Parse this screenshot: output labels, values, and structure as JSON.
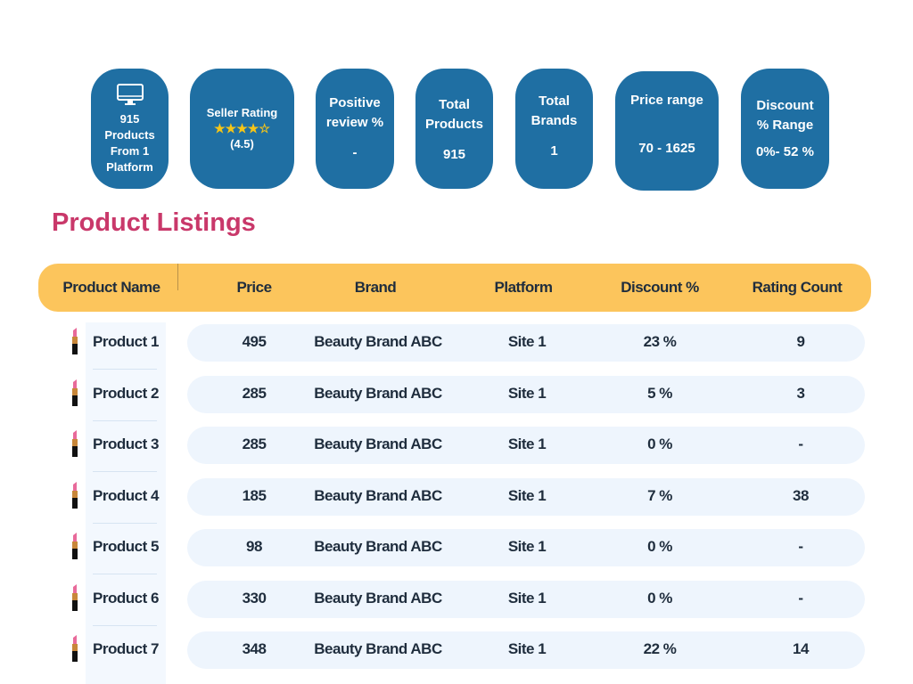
{
  "cards": [
    {
      "icon": "monitor-icon",
      "lines": [
        "915",
        "Products",
        "From 1",
        "Platform"
      ]
    },
    {
      "title": "Seller Rating",
      "rating": 4.5,
      "stars": "★★★★☆",
      "value": "(4.5)"
    },
    {
      "title": "Positive review %",
      "value": "-"
    },
    {
      "title": "Total Products",
      "value": "915"
    },
    {
      "title": "Total Brands",
      "value": "1"
    },
    {
      "title": "Price range",
      "value": "70 - 1625"
    },
    {
      "title": "Discount % Range",
      "value": "0%- 52 %"
    }
  ],
  "section_title": "Product Listings",
  "columns": [
    "Product Name",
    "Price",
    "Brand",
    "Platform",
    "Discount %",
    "Rating  Count"
  ],
  "rows": [
    [
      "Product 1",
      "495",
      "Beauty Brand ABC",
      "Site 1",
      "23 %",
      "9"
    ],
    [
      "Product  2",
      "285",
      "Beauty Brand ABC",
      "Site 1",
      "5 %",
      "3"
    ],
    [
      "Product 3",
      "285",
      "Beauty Brand ABC",
      "Site 1",
      "0 %",
      "-"
    ],
    [
      "Product 4",
      "185",
      "Beauty Brand ABC",
      "Site 1",
      "7 %",
      "38"
    ],
    [
      "Product 5",
      "98",
      "Beauty Brand ABC",
      "Site 1",
      "0 %",
      "-"
    ],
    [
      "Product 6",
      "330",
      "Beauty Brand ABC",
      "Site 1",
      "0 %",
      "-"
    ],
    [
      "Product 7",
      "348",
      "Beauty Brand ABC",
      "Site 1",
      "22 %",
      "14"
    ]
  ],
  "colors": {
    "card": "#1f6fa3",
    "header": "#fcc55c",
    "title": "#c9386a",
    "row": "#eef5fd",
    "star": "#f5c518"
  }
}
